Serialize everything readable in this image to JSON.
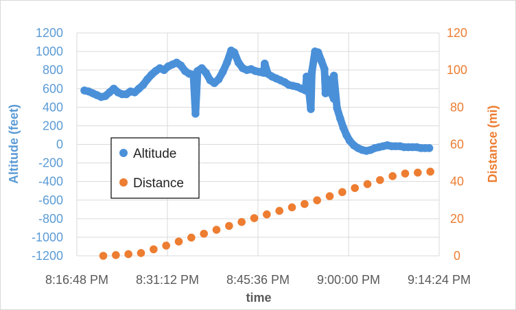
{
  "chart_data": {
    "type": "scatter",
    "xlabel": "time",
    "ylabel_left": "Altitude (feet)",
    "ylabel_right": "Distance (mi)",
    "x_ticks": [
      "8:16:48 PM",
      "8:31:12 PM",
      "8:45:36 PM",
      "9:00:00 PM",
      "9:14:24 PM"
    ],
    "x_range": [
      "8:16:48 PM",
      "9:14:24 PM"
    ],
    "y_left_ticks": [
      1200,
      1000,
      800,
      600,
      400,
      200,
      0,
      -200,
      -400,
      -600,
      -800,
      -1000,
      -1200
    ],
    "y_left_range": [
      -1200,
      1200
    ],
    "y_right_ticks": [
      120,
      100,
      80,
      60,
      40,
      20,
      0
    ],
    "y_right_range": [
      0,
      120
    ],
    "grid": true,
    "legend_position": "center-left",
    "colors": {
      "altitude": "#4a90d9",
      "distance": "#ed7d31",
      "left_axis": "#5b9bd5",
      "right_axis": "#ed7d31"
    },
    "series": [
      {
        "name": "Altitude",
        "axis": "left",
        "points": [
          [
            "8:18:00 PM",
            580
          ],
          [
            "8:18:40 PM",
            570
          ],
          [
            "8:19:20 PM",
            550
          ],
          [
            "8:20:00 PM",
            530
          ],
          [
            "8:20:40 PM",
            510
          ],
          [
            "8:21:20 PM",
            520
          ],
          [
            "8:22:00 PM",
            560
          ],
          [
            "8:22:40 PM",
            600
          ],
          [
            "8:23:20 PM",
            560
          ],
          [
            "8:24:00 PM",
            540
          ],
          [
            "8:24:40 PM",
            540
          ],
          [
            "8:25:20 PM",
            570
          ],
          [
            "8:26:00 PM",
            560
          ],
          [
            "8:26:40 PM",
            600
          ],
          [
            "8:27:20 PM",
            640
          ],
          [
            "8:28:00 PM",
            700
          ],
          [
            "8:28:40 PM",
            750
          ],
          [
            "8:29:20 PM",
            790
          ],
          [
            "8:30:00 PM",
            820
          ],
          [
            "8:30:40 PM",
            800
          ],
          [
            "8:31:20 PM",
            840
          ],
          [
            "8:32:00 PM",
            860
          ],
          [
            "8:32:40 PM",
            880
          ],
          [
            "8:33:20 PM",
            850
          ],
          [
            "8:34:00 PM",
            790
          ],
          [
            "8:34:40 PM",
            760
          ],
          [
            "8:35:20 PM",
            750
          ],
          [
            "8:36:00 PM",
            790
          ],
          [
            "8:36:40 PM",
            820
          ],
          [
            "8:37:20 PM",
            770
          ],
          [
            "8:38:00 PM",
            690
          ],
          [
            "8:38:40 PM",
            660
          ],
          [
            "8:39:20 PM",
            700
          ],
          [
            "8:40:00 PM",
            780
          ],
          [
            "8:40:40 PM",
            880
          ],
          [
            "8:41:20 PM",
            1010
          ],
          [
            "8:41:50 PM",
            990
          ],
          [
            "8:42:30 PM",
            880
          ],
          [
            "8:43:10 PM",
            820
          ],
          [
            "8:43:50 PM",
            800
          ],
          [
            "8:44:30 PM",
            810
          ],
          [
            "8:45:10 PM",
            790
          ],
          [
            "8:45:50 PM",
            780
          ],
          [
            "8:46:30 PM",
            770
          ],
          [
            "8:47:10 PM",
            760
          ],
          [
            "8:47:50 PM",
            730
          ],
          [
            "8:48:30 PM",
            710
          ],
          [
            "8:49:10 PM",
            690
          ],
          [
            "8:49:50 PM",
            670
          ],
          [
            "8:50:30 PM",
            640
          ],
          [
            "8:51:10 PM",
            630
          ],
          [
            "8:51:50 PM",
            620
          ],
          [
            "8:52:30 PM",
            600
          ],
          [
            "8:53:10 PM",
            580
          ],
          [
            "8:53:40 PM",
            600
          ],
          [
            "8:54:10 PM",
            780
          ],
          [
            "8:54:40 PM",
            1000
          ],
          [
            "8:55:10 PM",
            990
          ],
          [
            "8:55:40 PM",
            900
          ],
          [
            "8:56:10 PM",
            810
          ],
          [
            "8:56:40 PM",
            700
          ],
          [
            "8:57:10 PM",
            600
          ],
          [
            "8:57:40 PM",
            490
          ],
          [
            "8:58:10 PM",
            390
          ],
          [
            "8:58:40 PM",
            280
          ],
          [
            "8:59:10 PM",
            180
          ],
          [
            "8:59:40 PM",
            100
          ],
          [
            "9:00:10 PM",
            40
          ],
          [
            "9:00:50 PM",
            -10
          ],
          [
            "9:01:30 PM",
            -40
          ],
          [
            "9:02:10 PM",
            -60
          ],
          [
            "9:02:50 PM",
            -70
          ],
          [
            "9:03:30 PM",
            -60
          ],
          [
            "9:04:10 PM",
            -40
          ],
          [
            "9:04:50 PM",
            -30
          ],
          [
            "9:05:30 PM",
            -20
          ],
          [
            "9:06:10 PM",
            -10
          ],
          [
            "9:06:50 PM",
            -20
          ],
          [
            "9:07:30 PM",
            -20
          ],
          [
            "9:08:10 PM",
            -20
          ],
          [
            "9:08:50 PM",
            -30
          ],
          [
            "9:09:30 PM",
            -30
          ],
          [
            "9:10:10 PM",
            -30
          ],
          [
            "9:10:50 PM",
            -30
          ],
          [
            "9:11:30 PM",
            -40
          ],
          [
            "9:12:10 PM",
            -40
          ],
          [
            "9:12:50 PM",
            -40
          ],
          [
            "8:35:40 PM",
            330
          ],
          [
            "8:54:00 PM",
            380
          ],
          [
            "8:53:20 PM",
            730
          ],
          [
            "8:56:20 PM",
            550
          ],
          [
            "8:57:40 PM",
            740
          ],
          [
            "8:57:10 PM",
            560
          ],
          [
            "8:46:40 PM",
            870
          ]
        ]
      },
      {
        "name": "Distance",
        "axis": "right",
        "points": [
          [
            "8:21:00 PM",
            0
          ],
          [
            "8:23:00 PM",
            0.4
          ],
          [
            "8:25:00 PM",
            0.9
          ],
          [
            "8:27:00 PM",
            1.5
          ],
          [
            "8:29:00 PM",
            3.5
          ],
          [
            "8:31:00 PM",
            5.5
          ],
          [
            "8:33:00 PM",
            7.7
          ],
          [
            "8:35:00 PM",
            9.8
          ],
          [
            "8:37:00 PM",
            11.9
          ],
          [
            "8:39:00 PM",
            14.0
          ],
          [
            "8:41:00 PM",
            16.1
          ],
          [
            "8:43:00 PM",
            18.2
          ],
          [
            "8:45:00 PM",
            20.3
          ],
          [
            "8:47:00 PM",
            22.3
          ],
          [
            "8:49:00 PM",
            24.2
          ],
          [
            "8:51:00 PM",
            26.1
          ],
          [
            "8:53:00 PM",
            27.9
          ],
          [
            "8:55:00 PM",
            29.9
          ],
          [
            "8:57:00 PM",
            32.1
          ],
          [
            "8:59:00 PM",
            34.3
          ],
          [
            "9:01:00 PM",
            36.5
          ],
          [
            "9:03:00 PM",
            38.6
          ],
          [
            "9:05:00 PM",
            40.8
          ],
          [
            "9:07:00 PM",
            42.9
          ],
          [
            "9:09:00 PM",
            44.3
          ],
          [
            "9:11:00 PM",
            44.8
          ],
          [
            "9:13:00 PM",
            45.3
          ]
        ]
      }
    ]
  }
}
